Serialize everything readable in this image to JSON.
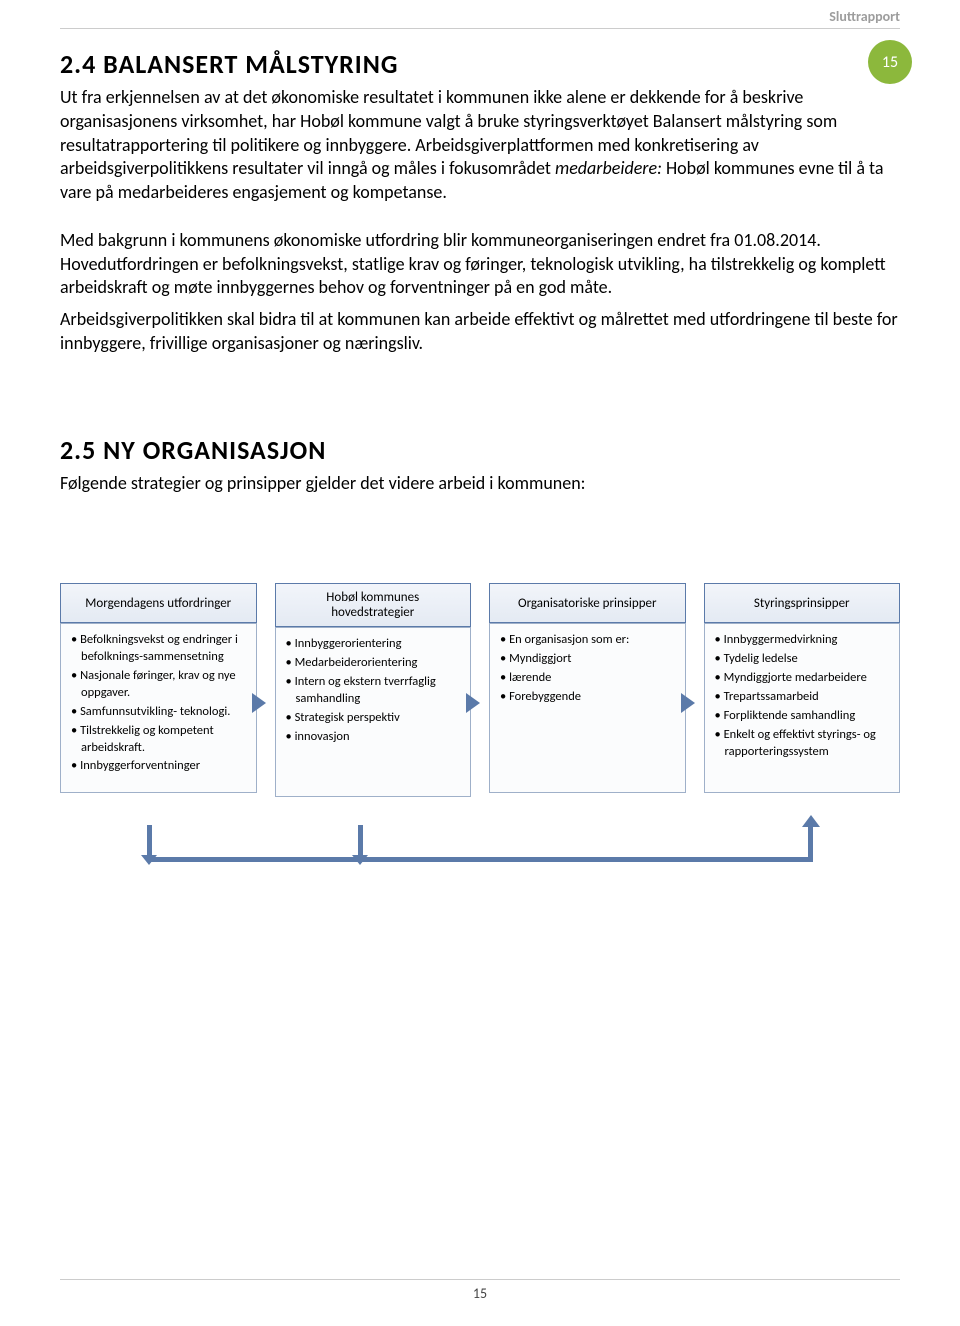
{
  "header": {
    "label": "Sluttrapport"
  },
  "badge": {
    "page_number": "15"
  },
  "colors": {
    "badge_bg": "#8cb83c",
    "box_border": "#5b7aa9",
    "box_header_bg_top": "#f2f5fa",
    "box_header_bg_bottom": "#e4eaf3",
    "rule": "#cccccc"
  },
  "s24": {
    "heading": "2.4 BALANSERT MÅLSTYRING",
    "p1a": "Ut fra erkjennelsen av at det økonomiske resultatet i kommunen ikke alene er dekkende for å beskrive organisasjonens virksomhet, har Hobøl kommune valgt å bruke styringsverktøyet Balansert målstyring som resultatrapportering til politikere og innbyggere. Arbeidsgiverplattformen med konkretisering av arbeidsgiverpolitikkens resultater vil inngå og måles i fokusområdet ",
    "p1_em": "medarbeidere:",
    "p1b": " Hobøl kommunes evne til å ta vare på medarbeideres engasjement og kompetanse.",
    "p2": "Med bakgrunn i kommunens økonomiske utfordring blir kommuneorganiseringen endret fra 01.08.2014. Hovedutfordringen er befolkningsvekst, statlige krav og føringer, teknologisk utvikling, ha tilstrekkelig og komplett arbeidskraft og møte innbyggernes behov og forventninger på en god måte.",
    "p3": "Arbeidsgiverpolitikken skal bidra til at kommunen kan arbeide effektivt og målrettet med utfordringene til beste for innbyggere, frivillige organisasjoner og næringsliv."
  },
  "s25": {
    "heading": "2.5 NY ORGANISASJON",
    "intro": "Følgende strategier og prinsipper gjelder det videre arbeid i kommunen:"
  },
  "cols": [
    {
      "title": "Morgendagens utfordringer",
      "items": [
        "Befolkningsvekst og endringer i befolknings-sammensetning",
        " Nasjonale føringer, krav og nye oppgaver.",
        " Samfunnsutvikling- teknologi.",
        " Tilstrekkelig og kompetent arbeidskraft.",
        " Innbyggerforventninger"
      ]
    },
    {
      "title": "Hobøl kommunes hovedstrategier",
      "items": [
        "Innbyggerorientering",
        " Medarbeiderorientering",
        "Intern og ekstern tverrfaglig samhandling",
        "Strategisk perspektiv",
        "innovasjon"
      ]
    },
    {
      "title": "Organisatoriske prinsipper",
      "items": [
        "En organisasjon som er:",
        " Myndiggjort",
        "lærende",
        "Forebyggende"
      ]
    },
    {
      "title": "Styringsprinsipper",
      "items": [
        "Innbyggermedvirkning",
        " Tydelig ledelse",
        " Myndiggjorte medarbeidere",
        "Trepartssamarbeid",
        " Forpliktende samhandling",
        "Enkelt og effektivt styrings- og rapporteringssystem"
      ]
    }
  ],
  "footer": {
    "page_number": "15"
  }
}
